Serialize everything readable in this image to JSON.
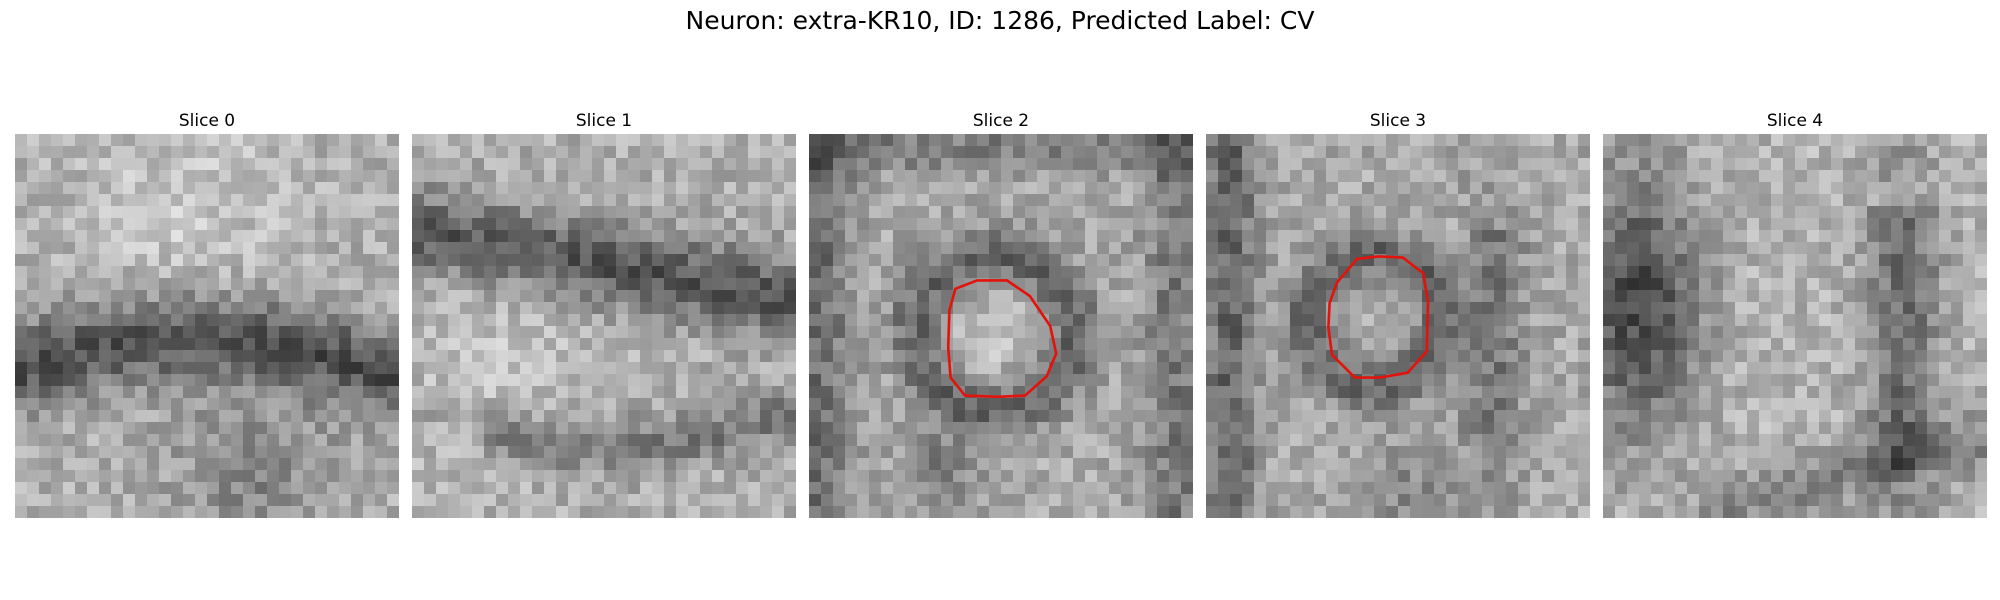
{
  "figure": {
    "title": "Neuron: extra-KR10, ID: 1286, Predicted Label: CV"
  },
  "panels": [
    {
      "label": "Slice 0",
      "has_contour": false
    },
    {
      "label": "Slice 1",
      "has_contour": false
    },
    {
      "label": "Slice 2",
      "has_contour": true
    },
    {
      "label": "Slice 3",
      "has_contour": true
    },
    {
      "label": "Slice 4",
      "has_contour": false
    }
  ],
  "colors": {
    "contour": "#e3120b",
    "colormap": "grayscale"
  }
}
